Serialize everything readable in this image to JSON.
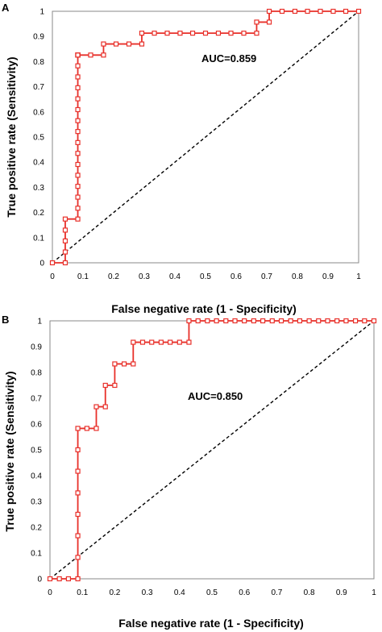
{
  "chart_data": [
    {
      "type": "line",
      "panel_label": "A",
      "xlabel": "False negative rate (1 - Specificity)",
      "ylabel": "True positive rate (Sensitivity)",
      "xlim": [
        0,
        1
      ],
      "ylim": [
        0,
        1
      ],
      "x_ticks": [
        "0",
        "0.1",
        "0.2",
        "0.3",
        "0.4",
        "0.5",
        "0.6",
        "0.7",
        "0.8",
        "0.9",
        "1"
      ],
      "y_ticks": [
        "0",
        "0.1",
        "0.2",
        "0.3",
        "0.4",
        "0.5",
        "0.6",
        "0.7",
        "0.8",
        "0.9",
        "1"
      ],
      "grid": false,
      "annotation": "AUC=0.859",
      "colors": {
        "curve": "#e8302a",
        "diagonal": "#000000"
      },
      "series": [
        {
          "x": [
            0,
            0.042,
            0.042,
            0.042,
            0.042,
            0.042,
            0.083,
            0.083,
            0.083,
            0.083,
            0.083,
            0.083,
            0.083,
            0.083,
            0.083,
            0.083,
            0.083,
            0.083,
            0.083,
            0.083,
            0.083,
            0.083,
            0.083,
            0.083,
            0.083,
            0.083,
            0.083,
            0.125,
            0.167,
            0.167,
            0.208,
            0.25,
            0.292,
            0.292,
            0.333,
            0.375,
            0.417,
            0.458,
            0.5,
            0.542,
            0.583,
            0.625,
            0.667,
            0.667,
            0.708,
            0.708,
            0.75,
            0.792,
            0.833,
            0.875,
            0.917,
            0.958,
            1.0
          ],
          "y": [
            0,
            0,
            0.043,
            0.087,
            0.13,
            0.174,
            0.174,
            0.217,
            0.261,
            0.304,
            0.348,
            0.391,
            0.435,
            0.478,
            0.522,
            0.565,
            0.609,
            0.652,
            0.696,
            0.739,
            0.783,
            0.826,
            0.826,
            0.826,
            0.826,
            0.826,
            0.826,
            0.826,
            0.826,
            0.87,
            0.87,
            0.87,
            0.87,
            0.913,
            0.913,
            0.913,
            0.913,
            0.913,
            0.913,
            0.913,
            0.913,
            0.913,
            0.913,
            0.957,
            0.957,
            1.0,
            1.0,
            1.0,
            1.0,
            1.0,
            1.0,
            1.0,
            1.0
          ]
        }
      ],
      "reference_line": {
        "x": [
          0,
          1
        ],
        "y": [
          0,
          1
        ]
      }
    },
    {
      "type": "line",
      "panel_label": "B",
      "xlabel": "False negative rate (1 - Specificity)",
      "ylabel": "True positive rate (Sensitivity)",
      "xlim": [
        0,
        1
      ],
      "ylim": [
        0,
        1
      ],
      "x_ticks": [
        "0",
        "0.1",
        "0.2",
        "0.3",
        "0.4",
        "0.5",
        "0.6",
        "0.7",
        "0.8",
        "0.9",
        "1"
      ],
      "y_ticks": [
        "0",
        "0.1",
        "0.2",
        "0.3",
        "0.4",
        "0.5",
        "0.6",
        "0.7",
        "0.8",
        "0.9",
        "1"
      ],
      "grid": false,
      "annotation": "AUC=0.850",
      "colors": {
        "curve": "#e8302a",
        "diagonal": "#000000"
      },
      "series": [
        {
          "x": [
            0,
            0.029,
            0.057,
            0.086,
            0.086,
            0.086,
            0.086,
            0.086,
            0.086,
            0.086,
            0.086,
            0.114,
            0.143,
            0.143,
            0.171,
            0.171,
            0.2,
            0.2,
            0.229,
            0.257,
            0.257,
            0.286,
            0.314,
            0.343,
            0.371,
            0.4,
            0.429,
            0.429,
            0.457,
            0.486,
            0.514,
            0.543,
            0.571,
            0.6,
            0.629,
            0.657,
            0.686,
            0.714,
            0.743,
            0.771,
            0.8,
            0.829,
            0.857,
            0.886,
            0.914,
            0.943,
            0.971,
            1.0
          ],
          "y": [
            0,
            0,
            0,
            0,
            0.083,
            0.167,
            0.25,
            0.333,
            0.417,
            0.5,
            0.583,
            0.583,
            0.583,
            0.667,
            0.667,
            0.75,
            0.75,
            0.833,
            0.833,
            0.833,
            0.917,
            0.917,
            0.917,
            0.917,
            0.917,
            0.917,
            0.917,
            1.0,
            1.0,
            1.0,
            1.0,
            1.0,
            1.0,
            1.0,
            1.0,
            1.0,
            1.0,
            1.0,
            1.0,
            1.0,
            1.0,
            1.0,
            1.0,
            1.0,
            1.0,
            1.0,
            1.0,
            1.0
          ]
        }
      ],
      "reference_line": {
        "x": [
          0,
          1
        ],
        "y": [
          0,
          1
        ]
      }
    }
  ]
}
